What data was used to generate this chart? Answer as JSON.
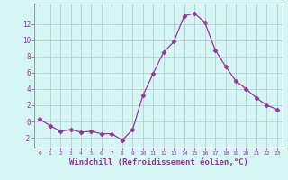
{
  "x": [
    0,
    1,
    2,
    3,
    4,
    5,
    6,
    7,
    8,
    9,
    10,
    11,
    12,
    13,
    14,
    15,
    16,
    17,
    18,
    19,
    20,
    21,
    22,
    23
  ],
  "y": [
    0.3,
    -0.5,
    -1.2,
    -1.0,
    -1.3,
    -1.2,
    -1.5,
    -1.5,
    -2.3,
    -1.0,
    3.2,
    5.9,
    8.5,
    9.8,
    13.0,
    13.3,
    12.2,
    8.8,
    6.8,
    5.0,
    4.0,
    2.9,
    2.0,
    1.5
  ],
  "line_color": "#993399",
  "marker": "D",
  "marker_size": 2.5,
  "bg_color": "#d6f5f5",
  "grid_color": "#aec8c8",
  "axis_color": "#777777",
  "tick_color": "#993399",
  "xlabel": "Windchill (Refroidissement éolien,°C)",
  "xlabel_fontsize": 6.5,
  "ylabel_ticks": [
    -2,
    0,
    2,
    4,
    6,
    8,
    10,
    12
  ],
  "ylim": [
    -3.2,
    14.5
  ],
  "xlim": [
    -0.5,
    23.5
  ],
  "title": ""
}
